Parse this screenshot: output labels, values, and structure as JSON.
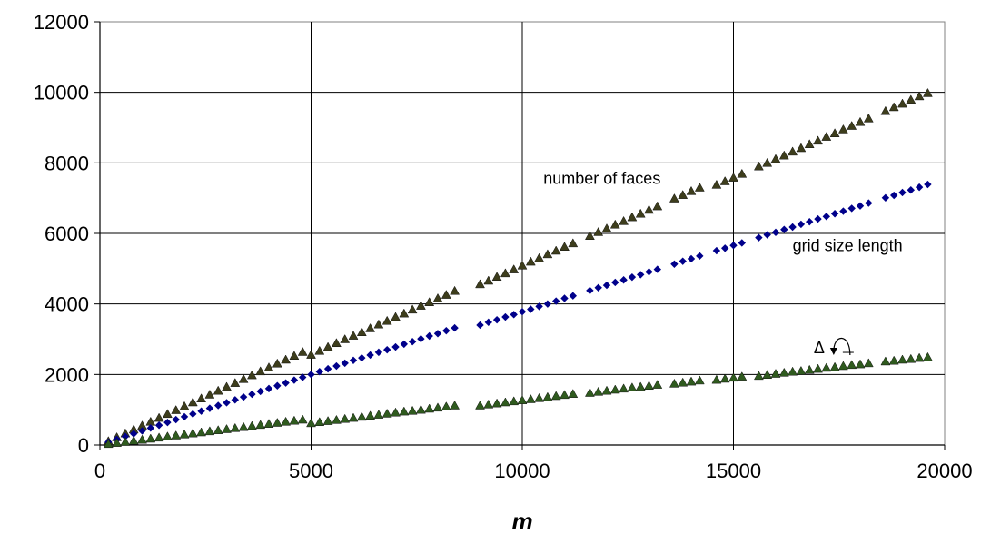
{
  "chart_data": {
    "type": "scatter",
    "title": "",
    "xlabel": "m",
    "ylabel": "",
    "xlim": [
      0,
      20000
    ],
    "ylim": [
      0,
      12000
    ],
    "x_ticks": [
      0,
      5000,
      10000,
      15000,
      20000
    ],
    "y_ticks": [
      0,
      2000,
      4000,
      6000,
      8000,
      10000,
      12000
    ],
    "x_tick_labels": [
      "0",
      "5000",
      "10000",
      "15000",
      "20000"
    ],
    "y_tick_labels": [
      "0",
      "2000",
      "4000",
      "6000",
      "8000",
      "10000",
      "12000"
    ],
    "grid": true,
    "legend": "none",
    "series": [
      {
        "name": "number of faces",
        "marker": "triangle",
        "color": "#3d3d1c",
        "x": [
          200,
          400,
          600,
          800,
          1000,
          1200,
          1400,
          1600,
          1800,
          2000,
          2200,
          2400,
          2600,
          2800,
          3000,
          3200,
          3400,
          3600,
          3800,
          4000,
          4200,
          4400,
          4600,
          4800,
          5000,
          5200,
          5400,
          5600,
          5800,
          6000,
          6200,
          6400,
          6600,
          6800,
          7000,
          7200,
          7400,
          7600,
          7800,
          8000,
          8200,
          8400,
          9000,
          9200,
          9400,
          9600,
          9800,
          10000,
          10200,
          10400,
          10600,
          10800,
          11000,
          11200,
          11600,
          11800,
          12000,
          12200,
          12400,
          12600,
          12800,
          13000,
          13200,
          13600,
          13800,
          14000,
          14200,
          14600,
          14800,
          15000,
          15200,
          15600,
          15800,
          16000,
          16200,
          16400,
          16600,
          16800,
          17000,
          17200,
          17400,
          17600,
          17800,
          18000,
          18200,
          18600,
          18800,
          19000,
          19200,
          19400,
          19600
        ],
        "y": [
          110,
          220,
          330,
          440,
          550,
          660,
          770,
          880,
          990,
          1100,
          1210,
          1320,
          1430,
          1540,
          1650,
          1760,
          1870,
          1980,
          2090,
          2200,
          2310,
          2420,
          2530,
          2640,
          2560,
          2670,
          2780,
          2890,
          3000,
          3100,
          3200,
          3310,
          3420,
          3520,
          3630,
          3730,
          3840,
          3950,
          4050,
          4160,
          4260,
          4370,
          4560,
          4660,
          4770,
          4870,
          4980,
          5090,
          5200,
          5300,
          5410,
          5510,
          5620,
          5720,
          5930,
          6040,
          6140,
          6250,
          6350,
          6460,
          6560,
          6670,
          6770,
          6990,
          7090,
          7200,
          7300,
          7380,
          7480,
          7580,
          7690,
          7900,
          8000,
          8110,
          8210,
          8320,
          8420,
          8530,
          8630,
          8740,
          8840,
          8950,
          9050,
          9160,
          9260,
          9470,
          9580,
          9680,
          9790,
          9890,
          9980
        ]
      },
      {
        "name": "grid size length",
        "marker": "diamond",
        "color": "#00008b",
        "x": [
          200,
          400,
          600,
          800,
          1000,
          1200,
          1400,
          1600,
          1800,
          2000,
          2200,
          2400,
          2600,
          2800,
          3000,
          3200,
          3400,
          3600,
          3800,
          4000,
          4200,
          4400,
          4600,
          4800,
          5000,
          5200,
          5400,
          5600,
          5800,
          6000,
          6200,
          6400,
          6600,
          6800,
          7000,
          7200,
          7400,
          7600,
          7800,
          8000,
          8200,
          8400,
          9000,
          9200,
          9400,
          9600,
          9800,
          10000,
          10200,
          10400,
          10600,
          10800,
          11000,
          11200,
          11600,
          11800,
          12000,
          12200,
          12400,
          12600,
          12800,
          13000,
          13200,
          13600,
          13800,
          14000,
          14200,
          14600,
          14800,
          15000,
          15200,
          15600,
          15800,
          16000,
          16200,
          16400,
          16600,
          16800,
          17000,
          17200,
          17400,
          17600,
          17800,
          18000,
          18200,
          18600,
          18800,
          19000,
          19200,
          19400,
          19600
        ],
        "y": [
          80,
          160,
          240,
          320,
          400,
          480,
          560,
          640,
          720,
          800,
          880,
          960,
          1040,
          1120,
          1200,
          1280,
          1360,
          1440,
          1520,
          1600,
          1680,
          1760,
          1840,
          1920,
          2000,
          2080,
          2160,
          2240,
          2320,
          2400,
          2470,
          2550,
          2630,
          2700,
          2780,
          2860,
          2930,
          3010,
          3090,
          3160,
          3240,
          3320,
          3400,
          3480,
          3550,
          3630,
          3700,
          3780,
          3850,
          3930,
          4000,
          4080,
          4160,
          4230,
          4380,
          4460,
          4530,
          4610,
          4680,
          4760,
          4830,
          4910,
          4980,
          5130,
          5210,
          5280,
          5360,
          5510,
          5580,
          5660,
          5730,
          5880,
          5960,
          6030,
          6110,
          6180,
          6260,
          6330,
          6410,
          6480,
          6560,
          6630,
          6710,
          6780,
          6860,
          7010,
          7080,
          7160,
          7230,
          7310,
          7390
        ]
      },
      {
        "name": "Δ",
        "marker": "triangle",
        "color": "#2f5a1e",
        "x": [
          200,
          400,
          600,
          800,
          1000,
          1200,
          1400,
          1600,
          1800,
          2000,
          2200,
          2400,
          2600,
          2800,
          3000,
          3200,
          3400,
          3600,
          3800,
          4000,
          4200,
          4400,
          4600,
          4800,
          5000,
          5200,
          5400,
          5600,
          5800,
          6000,
          6200,
          6400,
          6600,
          6800,
          7000,
          7200,
          7400,
          7600,
          7800,
          8000,
          8200,
          8400,
          9000,
          9200,
          9400,
          9600,
          9800,
          10000,
          10200,
          10400,
          10600,
          10800,
          11000,
          11200,
          11600,
          11800,
          12000,
          12200,
          12400,
          12600,
          12800,
          13000,
          13200,
          13600,
          13800,
          14000,
          14200,
          14600,
          14800,
          15000,
          15200,
          15600,
          15800,
          16000,
          16200,
          16400,
          16600,
          16800,
          17000,
          17200,
          17400,
          17600,
          17800,
          18000,
          18200,
          18600,
          18800,
          19000,
          19200,
          19400,
          19600
        ],
        "y": [
          30,
          60,
          90,
          120,
          150,
          180,
          210,
          240,
          270,
          300,
          330,
          360,
          390,
          420,
          450,
          480,
          510,
          540,
          570,
          600,
          630,
          660,
          690,
          720,
          620,
          650,
          680,
          710,
          740,
          770,
          800,
          830,
          860,
          890,
          920,
          950,
          970,
          1000,
          1030,
          1060,
          1090,
          1120,
          1120,
          1150,
          1180,
          1210,
          1240,
          1270,
          1300,
          1330,
          1360,
          1390,
          1420,
          1450,
          1480,
          1510,
          1540,
          1570,
          1600,
          1630,
          1650,
          1680,
          1710,
          1740,
          1770,
          1800,
          1830,
          1850,
          1880,
          1910,
          1940,
          1960,
          1990,
          2020,
          2050,
          2080,
          2100,
          2130,
          2160,
          2190,
          2210,
          2240,
          2270,
          2290,
          2320,
          2370,
          2390,
          2420,
          2440,
          2470,
          2490
        ]
      }
    ],
    "annotations": [
      {
        "text": "number of faces",
        "x": 10500,
        "y": 7400
      },
      {
        "text": "grid size length",
        "x": 16400,
        "y": 5500
      },
      {
        "text": "Δ",
        "x": 16900,
        "y": 2600
      }
    ]
  }
}
